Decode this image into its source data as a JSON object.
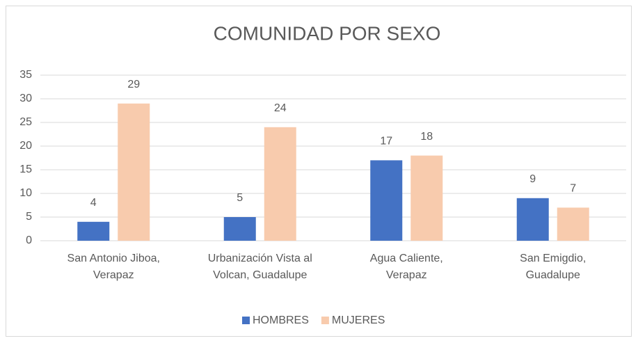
{
  "chart_data": {
    "type": "bar",
    "title": "COMUNIDAD POR SEXO",
    "categories": [
      "San Antonio Jiboa, Verapaz",
      "Urbanización Vista al Volcan, Guadalupe",
      "Agua Caliente, Verapaz",
      "San Emigdio, Guadalupe"
    ],
    "series": [
      {
        "name": "HOMBRES",
        "color": "#4472c4",
        "values": [
          4,
          5,
          17,
          9
        ]
      },
      {
        "name": "MUJERES",
        "color": "#f8cbad",
        "values": [
          29,
          24,
          18,
          7
        ]
      }
    ],
    "ylim": [
      0,
      35
    ],
    "yticks": [
      0,
      5,
      10,
      15,
      20,
      25,
      30,
      35
    ],
    "grid": true,
    "legend": "bottom"
  }
}
